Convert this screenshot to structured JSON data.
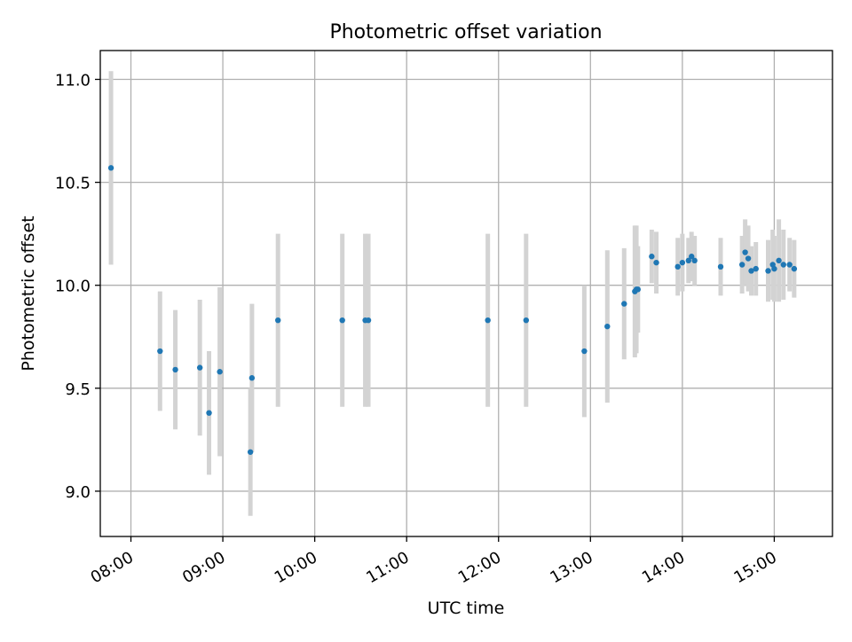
{
  "chart_data": {
    "type": "scatter",
    "title": "Photometric offset variation",
    "xlabel": "UTC time",
    "ylabel": "Photometric offset",
    "x_ticks": [
      "08:00",
      "09:00",
      "10:00",
      "11:00",
      "12:00",
      "13:00",
      "14:00",
      "15:00"
    ],
    "y_ticks": [
      "9.0",
      "9.5",
      "10.0",
      "10.5",
      "11.0"
    ],
    "xlim": [
      "07:40",
      "15:38"
    ],
    "ylim": [
      8.78,
      11.14
    ],
    "grid": true,
    "series": [
      {
        "points": [
          {
            "x": "07:47",
            "y": 10.57,
            "err": 0.47
          },
          {
            "x": "08:19",
            "y": 9.68,
            "err": 0.29
          },
          {
            "x": "08:29",
            "y": 9.59,
            "err": 0.29
          },
          {
            "x": "08:45",
            "y": 9.6,
            "err": 0.33
          },
          {
            "x": "08:51",
            "y": 9.38,
            "err": 0.3
          },
          {
            "x": "08:58",
            "y": 9.58,
            "err": 0.41
          },
          {
            "x": "09:18",
            "y": 9.19,
            "err": 0.31
          },
          {
            "x": "09:19",
            "y": 9.55,
            "err": 0.36
          },
          {
            "x": "09:36",
            "y": 9.83,
            "err": 0.42
          },
          {
            "x": "10:18",
            "y": 9.83,
            "err": 0.42
          },
          {
            "x": "10:33",
            "y": 9.83,
            "err": 0.42
          },
          {
            "x": "10:35",
            "y": 9.83,
            "err": 0.42
          },
          {
            "x": "11:53",
            "y": 9.83,
            "err": 0.42
          },
          {
            "x": "12:18",
            "y": 9.83,
            "err": 0.42
          },
          {
            "x": "12:56",
            "y": 9.68,
            "err": 0.32
          },
          {
            "x": "13:11",
            "y": 9.8,
            "err": 0.37
          },
          {
            "x": "13:22",
            "y": 9.91,
            "err": 0.27
          },
          {
            "x": "13:29",
            "y": 9.97,
            "err": 0.32
          },
          {
            "x": "13:30",
            "y": 9.98,
            "err": 0.31
          },
          {
            "x": "13:31",
            "y": 9.98,
            "err": 0.21
          },
          {
            "x": "13:40",
            "y": 10.14,
            "err": 0.13
          },
          {
            "x": "13:43",
            "y": 10.11,
            "err": 0.15
          },
          {
            "x": "13:57",
            "y": 10.09,
            "err": 0.14
          },
          {
            "x": "14:00",
            "y": 10.11,
            "err": 0.14
          },
          {
            "x": "14:04",
            "y": 10.12,
            "err": 0.11
          },
          {
            "x": "14:06",
            "y": 10.14,
            "err": 0.12
          },
          {
            "x": "14:08",
            "y": 10.12,
            "err": 0.12
          },
          {
            "x": "14:25",
            "y": 10.09,
            "err": 0.14
          },
          {
            "x": "14:39",
            "y": 10.1,
            "err": 0.14
          },
          {
            "x": "14:41",
            "y": 10.16,
            "err": 0.16
          },
          {
            "x": "14:43",
            "y": 10.13,
            "err": 0.16
          },
          {
            "x": "14:45",
            "y": 10.07,
            "err": 0.12
          },
          {
            "x": "14:48",
            "y": 10.08,
            "err": 0.13
          },
          {
            "x": "14:56",
            "y": 10.07,
            "err": 0.15
          },
          {
            "x": "14:59",
            "y": 10.1,
            "err": 0.17
          },
          {
            "x": "15:00",
            "y": 10.08,
            "err": 0.16
          },
          {
            "x": "15:03",
            "y": 10.12,
            "err": 0.2
          },
          {
            "x": "15:06",
            "y": 10.1,
            "err": 0.17
          },
          {
            "x": "15:10",
            "y": 10.1,
            "err": 0.13
          },
          {
            "x": "15:13",
            "y": 10.08,
            "err": 0.14
          }
        ]
      }
    ],
    "colors": {
      "point": "#1f77b4",
      "errorbar": "#d3d3d3",
      "grid": "#b0b0b0"
    }
  }
}
